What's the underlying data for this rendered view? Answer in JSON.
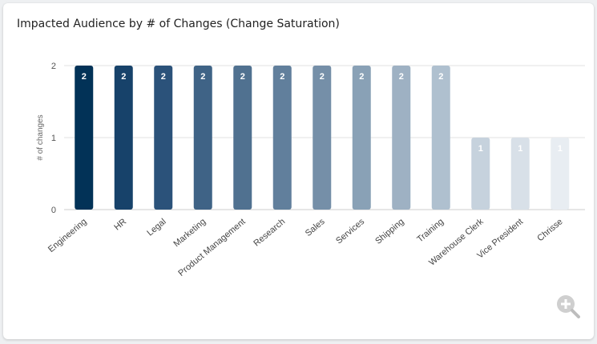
{
  "card": {
    "title": "Impacted Audience by # of Changes (Change Saturation)"
  },
  "zoom": {
    "icon": "zoom-in-icon"
  },
  "chart_data": {
    "type": "bar",
    "title": "Impacted Audience by # of Changes (Change Saturation)",
    "xlabel": "",
    "ylabel": "# of changes",
    "ylim": [
      0,
      2
    ],
    "yticks": [
      0,
      1,
      2
    ],
    "grid": true,
    "data_labels": true,
    "categories": [
      "Engineering",
      "HR",
      "Legal",
      "Marketing",
      "Product Management",
      "Research",
      "Sales",
      "Services",
      "Shipping",
      "Training",
      "Warehouse Clerk",
      "Vice President",
      "Chrisse"
    ],
    "values": [
      2,
      2,
      2,
      2,
      2,
      2,
      2,
      2,
      2,
      2,
      1,
      1,
      1
    ],
    "colors": [
      "#023257",
      "#17426a",
      "#2b527a",
      "#3f6386",
      "#507190",
      "#617f9c",
      "#758fa8",
      "#89a1b6",
      "#9eb1c3",
      "#afc0cf",
      "#c6d2dd",
      "#d8e0e8",
      "#e8edf2"
    ],
    "label_colors": [
      "#ffffff",
      "#ffffff",
      "#ffffff",
      "#ffffff",
      "#ffffff",
      "#ffffff",
      "#ffffff",
      "#ffffff",
      "#ffffff",
      "#ffffff",
      "#ffffff",
      "#ffffff",
      "#ffffff"
    ]
  }
}
